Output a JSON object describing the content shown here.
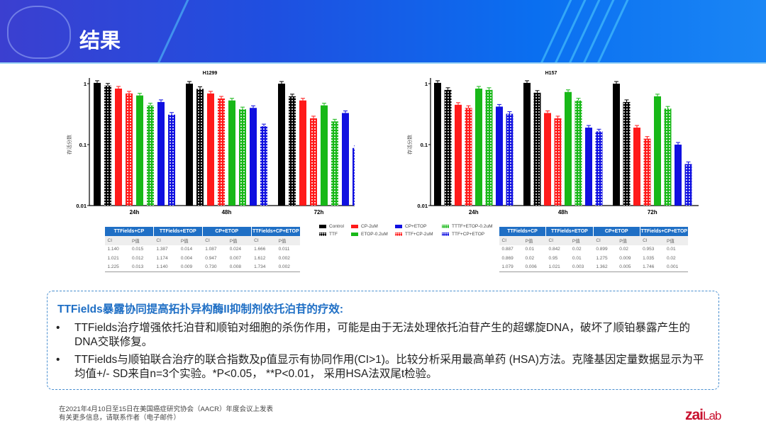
{
  "header": {
    "title": "结果"
  },
  "colors": {
    "black": "#000000",
    "red": "#ff1a1a",
    "green": "#18b818",
    "blue": "#1010e0",
    "table_header": "#1f6fc5",
    "accent": "#1f6fc5",
    "logo": "#c8102e"
  },
  "legend": [
    {
      "label": "Control",
      "color": "#000000",
      "pattern": false
    },
    {
      "label": "CP-2uM",
      "color": "#ff1a1a",
      "pattern": false
    },
    {
      "label": "CP+ETOP",
      "color": "#1010e0",
      "pattern": false
    },
    {
      "label": "TTTF+ETOP-0.2uM",
      "color": "#18b818",
      "pattern": true
    },
    {
      "label": "TTF",
      "color": "#000000",
      "pattern": true
    },
    {
      "label": "ETOP-0.2uM",
      "color": "#18b818",
      "pattern": false
    },
    {
      "label": "TTF+CP-2uM",
      "color": "#ff1a1a",
      "pattern": true
    },
    {
      "label": "TTF+CP+ETOP",
      "color": "#1010e0",
      "pattern": true
    }
  ],
  "chart_data": [
    {
      "type": "bar",
      "title": "H1299",
      "ylabel": "存活分数",
      "yscale": "log",
      "ylim": [
        0.01,
        1.2
      ],
      "yticks": [
        "1",
        "0.1",
        "0.01"
      ],
      "categories": [
        "24h",
        "48h",
        "72h"
      ],
      "series": [
        {
          "name": "Control",
          "color": "#000000",
          "pattern": false,
          "values": [
            1.03,
            1.0,
            1.0
          ]
        },
        {
          "name": "TTF",
          "color": "#000000",
          "pattern": true,
          "values": [
            0.93,
            0.82,
            0.62
          ]
        },
        {
          "name": "CP-2uM",
          "color": "#ff1a1a",
          "pattern": false,
          "values": [
            0.83,
            0.69,
            0.53
          ]
        },
        {
          "name": "TTF+CP-2uM",
          "color": "#ff1a1a",
          "pattern": true,
          "values": [
            0.69,
            0.57,
            0.27
          ]
        },
        {
          "name": "ETOP-0.2uM",
          "color": "#18b818",
          "pattern": false,
          "values": [
            0.64,
            0.53,
            0.44
          ]
        },
        {
          "name": "TTTF+ETOP-0.2uM",
          "color": "#18b818",
          "pattern": true,
          "values": [
            0.44,
            0.38,
            0.24
          ]
        },
        {
          "name": "CP+ETOP",
          "color": "#1010e0",
          "pattern": false,
          "values": [
            0.5,
            0.4,
            0.33
          ]
        },
        {
          "name": "TTF+CP+ETOP",
          "color": "#1010e0",
          "pattern": true,
          "values": [
            0.31,
            0.2,
            0.088
          ]
        }
      ]
    },
    {
      "type": "bar",
      "title": "H157",
      "ylabel": "存活分数",
      "yscale": "log",
      "ylim": [
        0.01,
        1.2
      ],
      "yticks": [
        "1",
        "0.1",
        "0.01"
      ],
      "categories": [
        "24h",
        "48h",
        "72h"
      ],
      "series": [
        {
          "name": "Control",
          "color": "#000000",
          "pattern": false,
          "values": [
            1.03,
            1.03,
            1.0
          ]
        },
        {
          "name": "TTF",
          "color": "#000000",
          "pattern": true,
          "values": [
            0.79,
            0.71,
            0.5
          ]
        },
        {
          "name": "CP-2uM",
          "color": "#ff1a1a",
          "pattern": false,
          "values": [
            0.45,
            0.33,
            0.19
          ]
        },
        {
          "name": "TTF+CP-2uM",
          "color": "#ff1a1a",
          "pattern": true,
          "values": [
            0.4,
            0.27,
            0.125
          ]
        },
        {
          "name": "ETOP-0.2uM",
          "color": "#18b818",
          "pattern": false,
          "values": [
            0.83,
            0.73,
            0.62
          ]
        },
        {
          "name": "TTTF+ETOP-0.2uM",
          "color": "#18b818",
          "pattern": true,
          "values": [
            0.79,
            0.53,
            0.39
          ]
        },
        {
          "name": "CP+ETOP",
          "color": "#1010e0",
          "pattern": false,
          "values": [
            0.42,
            0.19,
            0.1
          ]
        },
        {
          "name": "TTF+CP+ETOP",
          "color": "#1010e0",
          "pattern": true,
          "values": [
            0.32,
            0.165,
            0.048
          ]
        }
      ]
    }
  ],
  "tables": [
    {
      "headers": [
        "TTFields+CP",
        "TTFields+ETOP",
        "CP+ETOP",
        "TTFields+CP+ETOP"
      ],
      "sub": [
        "CI",
        "P值",
        "CI",
        "P值",
        "CI",
        "P值",
        "CI",
        "P值"
      ],
      "rows": [
        [
          "1.140",
          "0.015",
          "1.387",
          "0.014",
          "1.087",
          "0.024",
          "1.666",
          "0.011"
        ],
        [
          "1.021",
          "0.012",
          "1.174",
          "0.004",
          "0.947",
          "0.007",
          "1.612",
          "0.002"
        ],
        [
          "1.225",
          "0.013",
          "1.140",
          "0.009",
          "0.730",
          "0.008",
          "1.734",
          "0.002"
        ]
      ]
    },
    {
      "headers": [
        "TTFields+CP",
        "TTFields+ETOP",
        "CP+ETOP",
        "TTFields+CP+ETOP"
      ],
      "sub": [
        "CI",
        "P值",
        "CI",
        "P值",
        "CI",
        "P值",
        "CI",
        "P值"
      ],
      "rows": [
        [
          "0.887",
          "0.01",
          "0.842",
          "0.02",
          "0.899",
          "0.02",
          "0.953",
          "0.01"
        ],
        [
          "0.869",
          "0.02",
          "0.95",
          "0.01",
          "1.275",
          "0.009",
          "1.035",
          "0.02"
        ],
        [
          "1.079",
          "0.006",
          "1.021",
          "0.003",
          "1.362",
          "0.005",
          "1.746",
          "0.001"
        ]
      ]
    }
  ],
  "summary": {
    "title": "TTFields暴露协同提高拓扑异构酶II抑制剂依托泊苷的疗效:",
    "bullets": [
      "TTFields治疗增强依托泊苷和顺铂对细胞的杀伤作用，可能是由于无法处理依托泊苷产生的超螺旋DNA，破坏了顺铂暴露产生的DNA交联修复。",
      "TTFields与顺铂联合治疗的联合指数及p值显示有协同作用(CI>1)。比较分析采用最高单药 (HSA)方法。克隆基因定量数据显示为平均值+/- SD来自n=3个实验。*P<0.05， **P<0.01， 采用HSA法双尾t检验。"
    ]
  },
  "footer": {
    "line1": "在2021年4月10日至15日在美国癌症研究协会（AACR）年度会议上发表",
    "line2": "有关更多信息，请联系作者（电子邮件）",
    "logo": "zaiLab"
  }
}
